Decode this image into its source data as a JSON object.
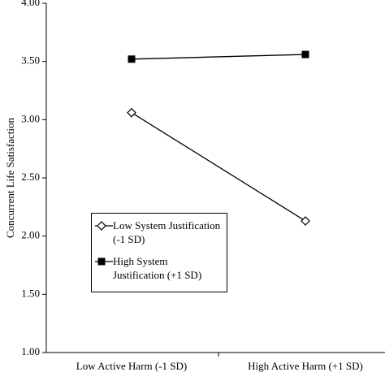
{
  "chart_data": {
    "type": "line",
    "y_label": "Concurrent Life Satisfaction",
    "categories": [
      "Low Active Harm (-1 SD)",
      "High Active Harm (+1 SD)"
    ],
    "series": [
      {
        "name": "Low System Justification (-1 SD)",
        "color": "#000000",
        "marker": "diamond-open",
        "values": [
          3.06,
          2.13
        ]
      },
      {
        "name": "High System Justification (+1 SD)",
        "color": "#000000",
        "marker": "square",
        "values": [
          3.52,
          3.56
        ]
      }
    ],
    "ylim": [
      1,
      4
    ],
    "yticks": [
      {
        "value": 1,
        "label": "1.00"
      },
      {
        "value": 1.5,
        "label": "1.50"
      },
      {
        "value": 2,
        "label": "2.00"
      },
      {
        "value": 2.5,
        "label": "2.50"
      },
      {
        "value": 3,
        "label": "3.00"
      },
      {
        "value": 3.5,
        "label": "3.50"
      },
      {
        "value": 4,
        "label": "4.00"
      }
    ],
    "grid": false
  }
}
